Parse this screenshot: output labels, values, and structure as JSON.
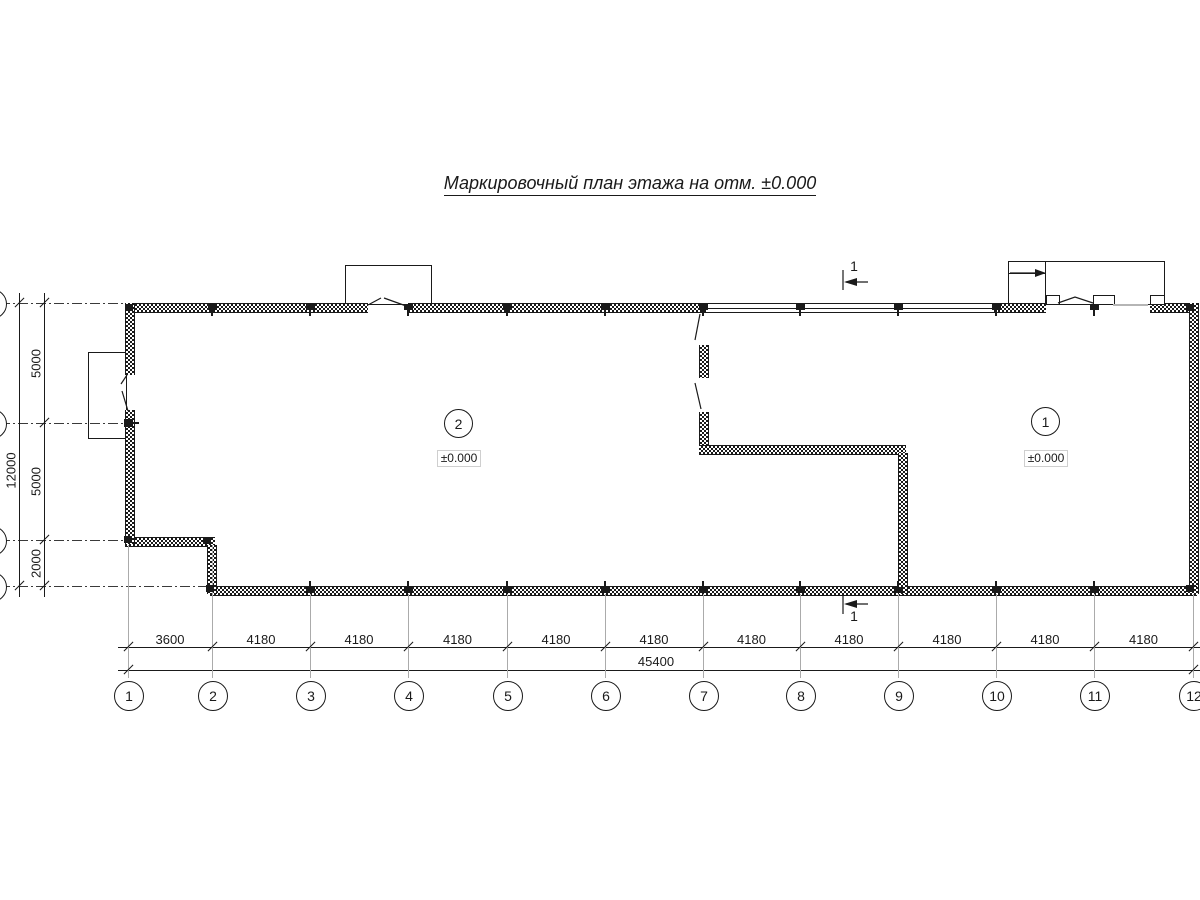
{
  "title": "Маркировочный план этажа на отм. ±0.000",
  "rooms": [
    {
      "number": "2",
      "elevation": "±0.000"
    },
    {
      "number": "1",
      "elevation": "±0.000"
    }
  ],
  "section": {
    "top_label": "1",
    "bottom_label": "1"
  },
  "grid": {
    "columns": [
      "1",
      "2",
      "3",
      "4",
      "5",
      "6",
      "7",
      "8",
      "9",
      "10",
      "11",
      "12"
    ],
    "column_spacings": [
      "3600",
      "4180",
      "4180",
      "4180",
      "4180",
      "4180",
      "4180",
      "4180",
      "4180",
      "4180",
      "4180"
    ],
    "total_width": "45400",
    "row_spacings": [
      "5000",
      "5000",
      "2000"
    ],
    "total_height": "12000"
  },
  "colors": {
    "line": "#1a1a1a",
    "grid_line": "#ababab",
    "hatch": "#1a1a1a",
    "label_box_border": "#cfcfcf"
  }
}
